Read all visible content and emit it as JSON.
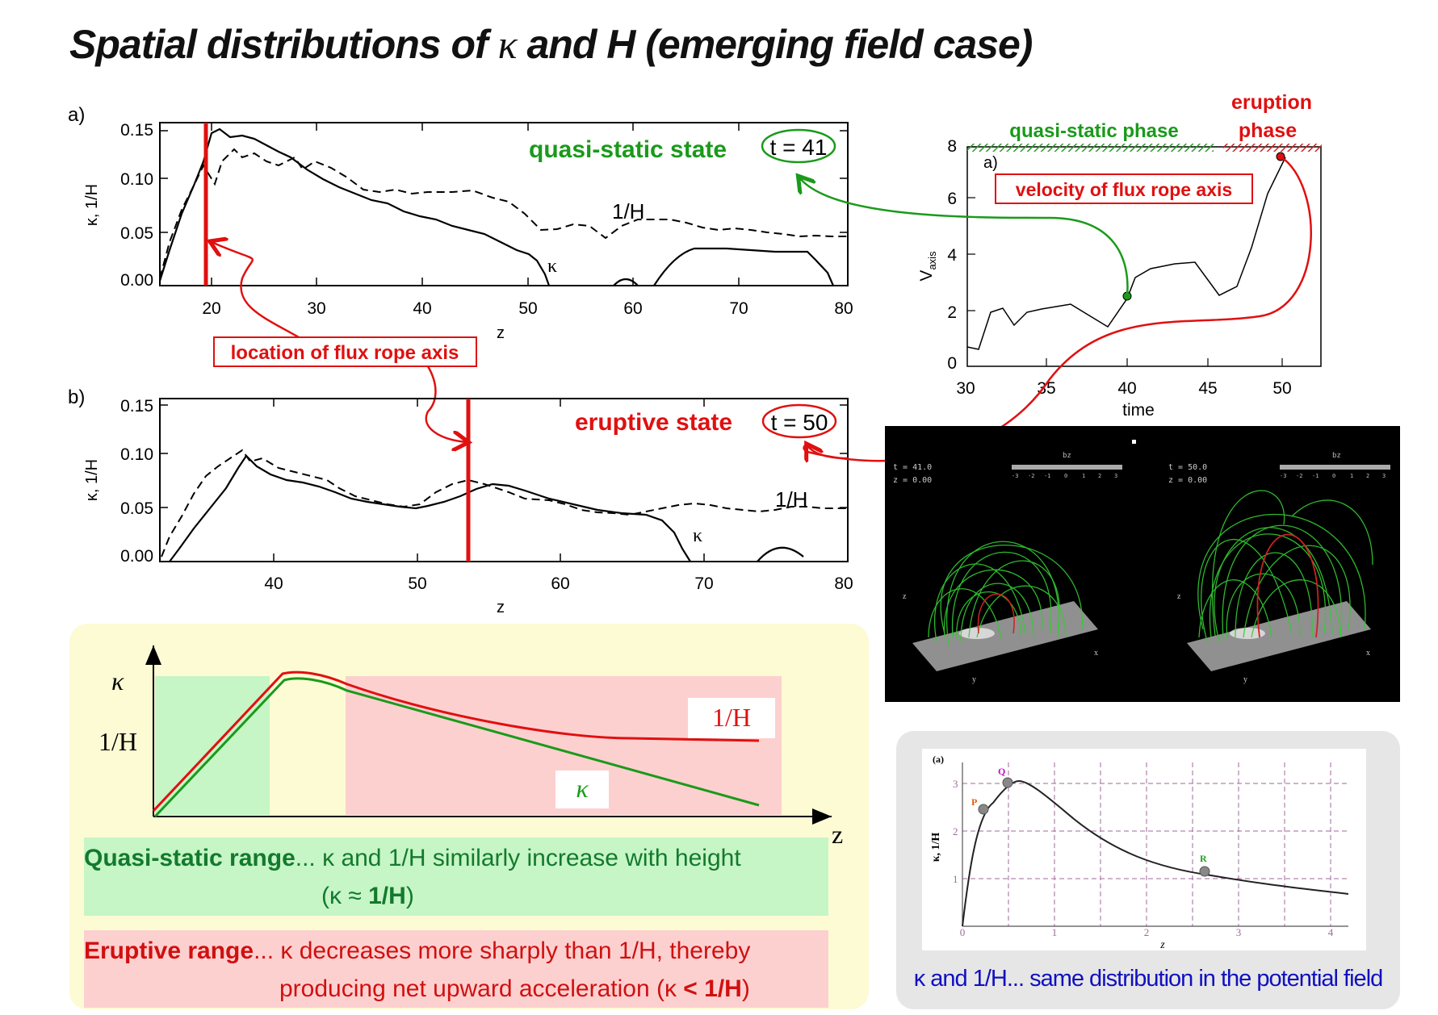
{
  "title": {
    "pre": "Spatial distributions of ",
    "kappa": "κ",
    "post": " and H (emerging field case)"
  },
  "colors": {
    "green": "#1a9a1a",
    "red": "#e01010",
    "blue": "#1010c0",
    "yellow_bg": "#fdfbd4",
    "green_box": "#c6f5c6",
    "red_box": "#fdd0d0"
  },
  "panel_a": {
    "label": "a)",
    "ylabel": "κ, 1/H",
    "xlabel": "z",
    "state": "quasi-static state",
    "time": "t = 41",
    "curve_labels": {
      "invH": "1/H",
      "kappa": "κ"
    },
    "yticks": [
      "0.00",
      "0.05",
      "0.10",
      "0.15"
    ],
    "xticks": [
      "20",
      "30",
      "40",
      "50",
      "60",
      "70",
      "80"
    ]
  },
  "panel_b": {
    "label": "b)",
    "ylabel": "κ, 1/H",
    "xlabel": "z",
    "state": "eruptive state",
    "time": "t = 50",
    "curve_labels": {
      "invH": "1/H",
      "kappa": "κ"
    },
    "yticks": [
      "0.00",
      "0.05",
      "0.10",
      "0.15"
    ],
    "xticks": [
      "40",
      "50",
      "60",
      "70",
      "80"
    ]
  },
  "axis_note": "location of flux rope axis",
  "velocity_plot": {
    "label": "a)",
    "ylabel_main": "V",
    "ylabel_sub": "axis",
    "xlabel": "time",
    "phase_quasi": "quasi-static phase",
    "phase_eruption_1": "eruption",
    "phase_eruption_2": "phase",
    "note": "velocity of flux rope axis",
    "yticks": [
      "0",
      "2",
      "4",
      "6",
      "8"
    ],
    "xticks": [
      "30",
      "35",
      "40",
      "45",
      "50"
    ]
  },
  "sim_image": {
    "left": {
      "t": "t = 41.0",
      "z": "z = 0.00",
      "bar": "bz",
      "scale": [
        "-3",
        "-2",
        "-1",
        "0",
        "1",
        "2",
        "3"
      ]
    },
    "right": {
      "t": "t = 50.0",
      "z": "z = 0.00",
      "bar": "bz",
      "scale": [
        "-3",
        "-2",
        "-1",
        "0",
        "1",
        "2",
        "3"
      ]
    },
    "axes": {
      "x": "x",
      "y": "y",
      "z": "z"
    }
  },
  "schematic": {
    "kappa_axis": "κ",
    "invH_axis": "1/H",
    "z_axis": "z",
    "invH_label": "1/H",
    "kappa_label": "κ",
    "quasi_title": "Quasi-static range",
    "quasi_text": "... κ and 1/H similarly increase with height",
    "quasi_text2_pre": "(κ ≈ ",
    "quasi_text2_bold": "1/H",
    "quasi_text2_post": ")",
    "erupt_title": "Eruptive range",
    "erupt_text": "... κ decreases more sharply than 1/H, thereby",
    "erupt_text2_pre": "producing net upward acceleration (κ ",
    "erupt_text2_bold": "< 1/H",
    "erupt_text2_post": ")"
  },
  "potential_plot": {
    "label": "(a)",
    "ylabel": "κ, 1/H",
    "xlabel": "z",
    "points": [
      "P",
      "Q",
      "R"
    ],
    "yticks": [
      "1",
      "2",
      "3"
    ],
    "xticks": [
      "0",
      "1",
      "2",
      "3",
      "4"
    ],
    "caption": "κ and 1/H... same distribution in the potential field"
  }
}
